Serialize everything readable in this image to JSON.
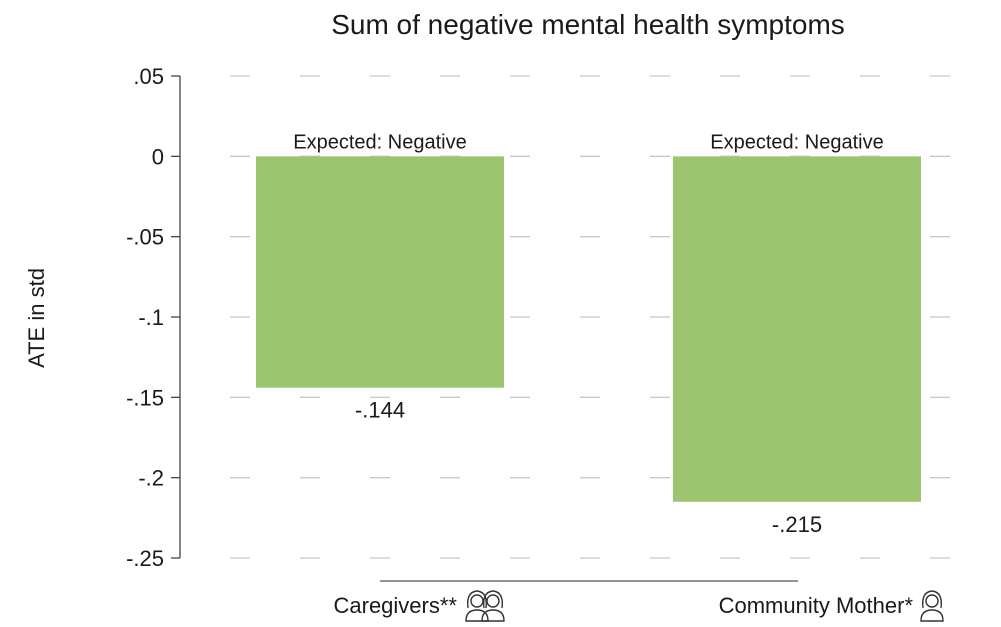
{
  "chart_data": {
    "type": "bar",
    "title": "Sum of negative mental health symptoms",
    "ylabel": "ATE in std",
    "xlabel": "",
    "ylim": [
      -0.25,
      0.05
    ],
    "yticks": [
      {
        "value": 0.05,
        "label": ".05"
      },
      {
        "value": 0,
        "label": "0"
      },
      {
        "value": -0.05,
        "label": "-.05"
      },
      {
        "value": -0.1,
        "label": "-.1"
      },
      {
        "value": -0.15,
        "label": "-.15"
      },
      {
        "value": -0.2,
        "label": "-.2"
      },
      {
        "value": -0.25,
        "label": "-.25"
      }
    ],
    "grid": true,
    "categories": [
      "Caregivers**",
      "Community Mother*"
    ],
    "values": [
      -0.144,
      -0.215
    ],
    "value_labels": [
      "-.144",
      "-.215"
    ],
    "annotations": [
      "Expected: Negative",
      "Expected: Negative"
    ],
    "category_icons": [
      "two-women-icon",
      "woman-icon"
    ],
    "bar_color": "#9dc46f",
    "grid_color": "#c8c8c8"
  }
}
